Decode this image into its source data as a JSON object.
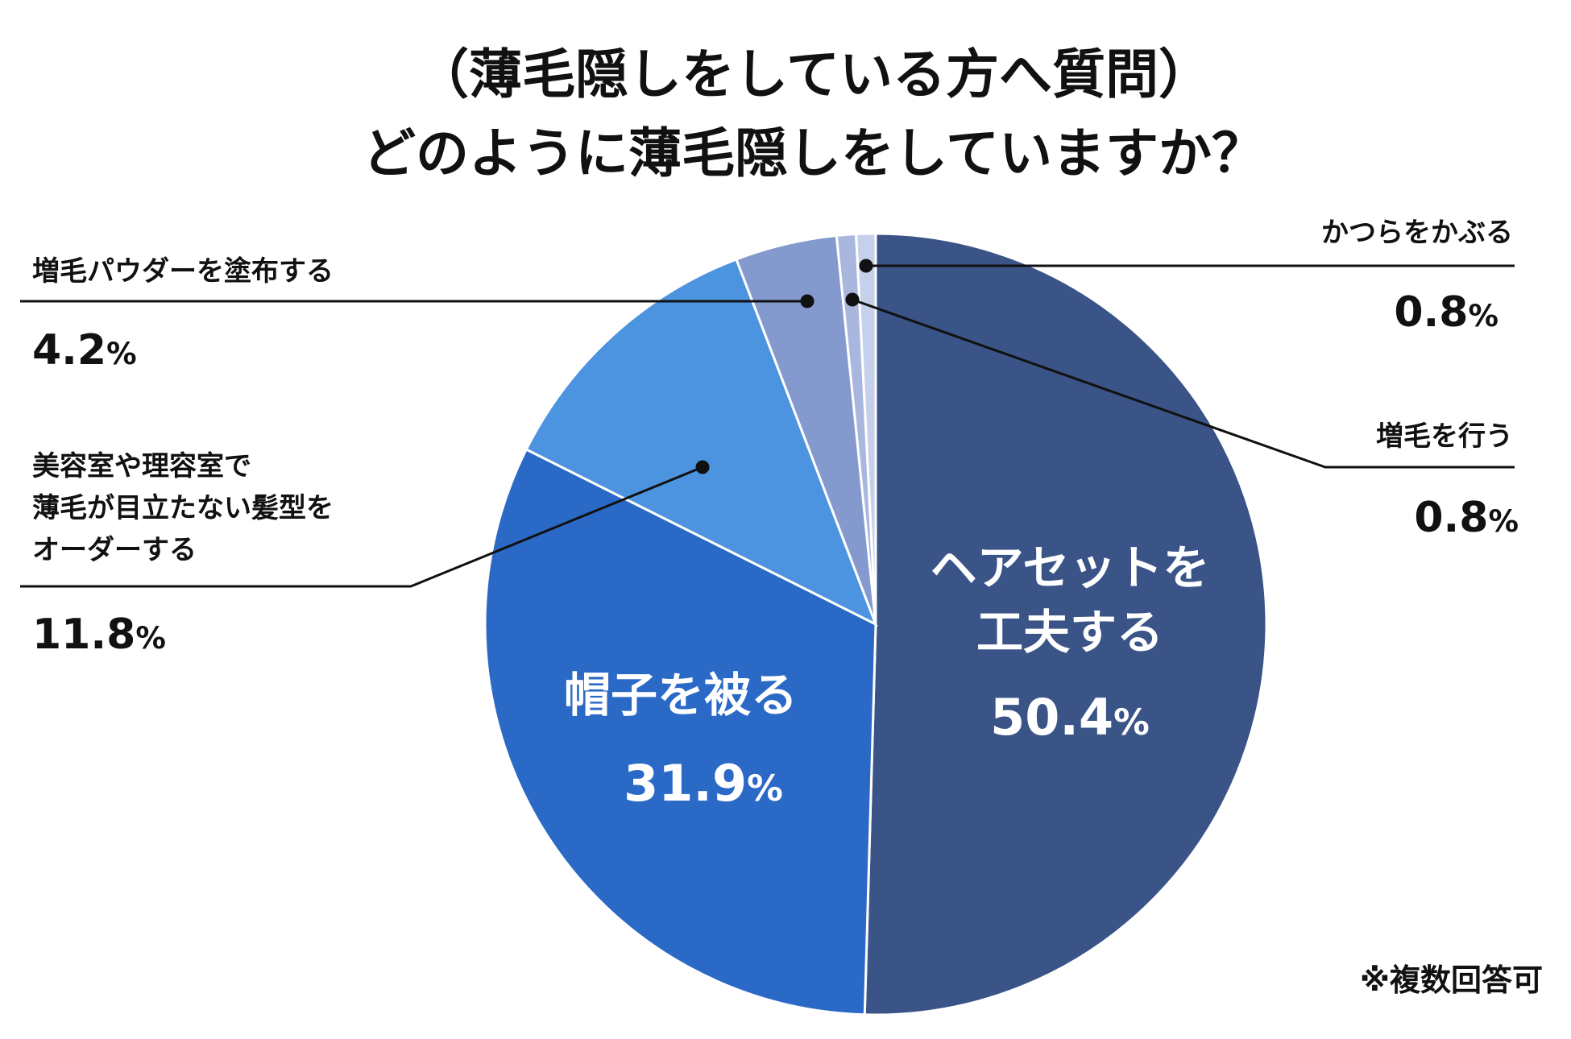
{
  "title_lines": [
    "（薄毛隠しをしている方へ質問）",
    "どのように薄毛隠しをしていますか？"
  ],
  "note": "※複数回答可",
  "chart_data": {
    "type": "pie",
    "start": "12 o'clock",
    "direction": "clockwise",
    "unit": "%",
    "slices": [
      {
        "label": "ヘアセットを工夫する",
        "value": 50.4,
        "value_text": "50.4",
        "color": "#3a5488"
      },
      {
        "label": "帽子を被る",
        "value": 31.9,
        "value_text": "31.9",
        "color": "#2b69c6"
      },
      {
        "label": "美容室や理容室で薄毛が目立たない髪型をオーダーする",
        "value": 11.8,
        "value_text": "11.8",
        "color": "#4d94e0"
      },
      {
        "label": "増毛パウダーを塗布する",
        "value": 4.2,
        "value_text": "4.2",
        "color": "#8499cd"
      },
      {
        "label": "増毛を行う",
        "value": 0.8,
        "value_text": "0.8",
        "color": "#a9b7de"
      },
      {
        "label": "かつらをかぶる",
        "value": 0.8,
        "value_text": "0.8",
        "color": "#c6d0ea"
      }
    ]
  }
}
